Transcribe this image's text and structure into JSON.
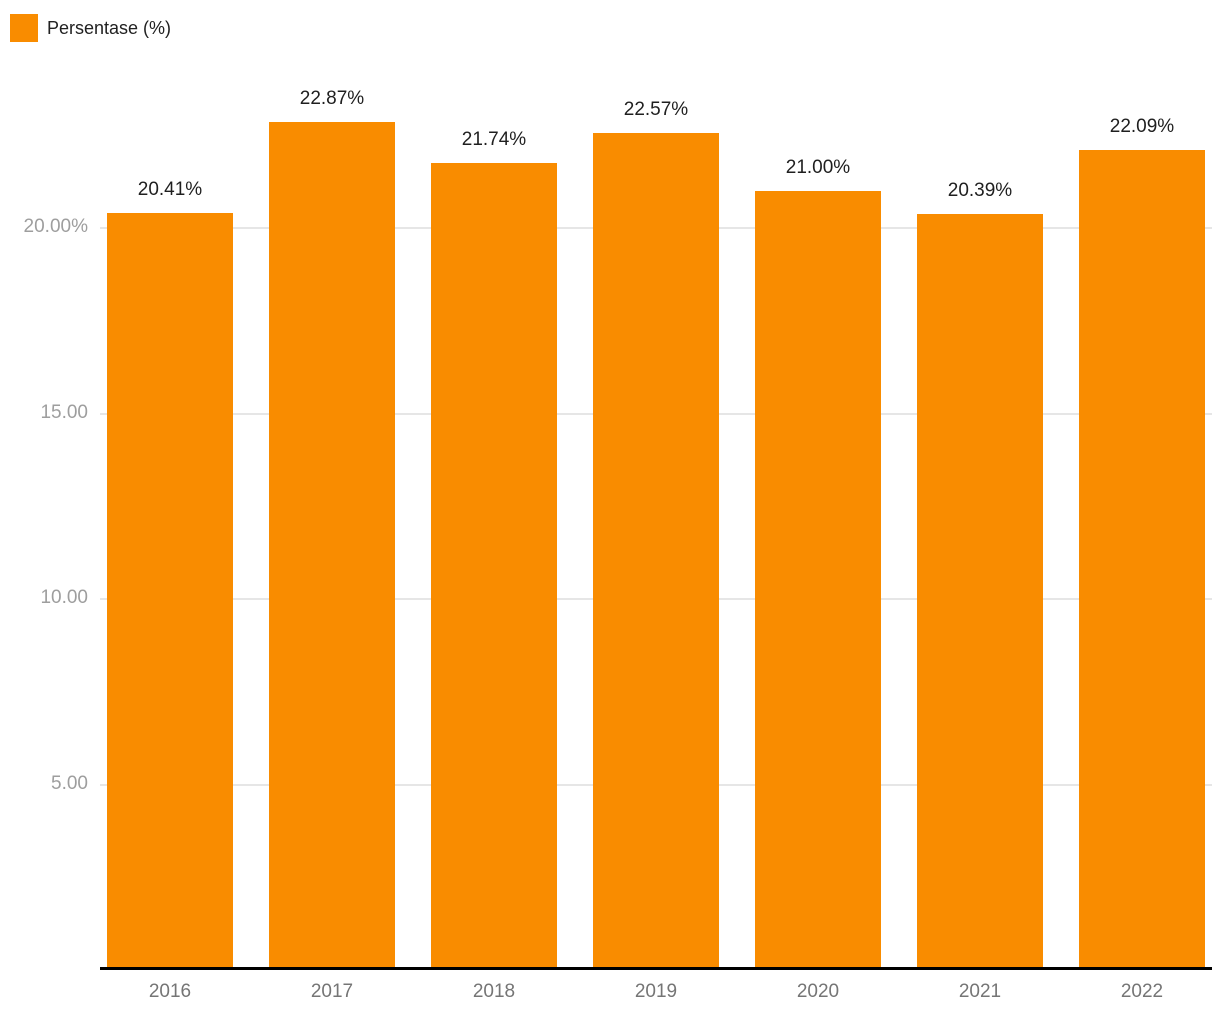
{
  "chart_data": {
    "type": "bar",
    "title": "",
    "xlabel": "",
    "ylabel": "",
    "legend": {
      "label": "Persentase (%)",
      "position": "top-left"
    },
    "categories": [
      "2016",
      "2017",
      "2018",
      "2019",
      "2020",
      "2021",
      "2022"
    ],
    "series": [
      {
        "name": "Persentase (%)",
        "values": [
          20.41,
          22.87,
          21.74,
          22.57,
          21.0,
          20.39,
          22.09
        ],
        "value_labels": [
          "20.41%",
          "22.87%",
          "21.74%",
          "22.57%",
          "21.00%",
          "20.39%",
          "22.09%"
        ]
      }
    ],
    "y_ticks": [
      {
        "value": 5,
        "label": "5.00"
      },
      {
        "value": 10,
        "label": "10.00"
      },
      {
        "value": 15,
        "label": "15.00"
      },
      {
        "value": 20,
        "label": "20.00%"
      }
    ],
    "ylim": [
      0,
      23.4
    ],
    "grid": true,
    "colors": {
      "bar": "#F98C00",
      "gridline": "#E6E6E6",
      "axis_line": "#000000",
      "y_tick_text": "#9E9E9E",
      "x_tick_text": "#757575",
      "value_label_text": "#1F1F1F",
      "legend_text": "#212121",
      "background": "#FFFFFF"
    }
  }
}
